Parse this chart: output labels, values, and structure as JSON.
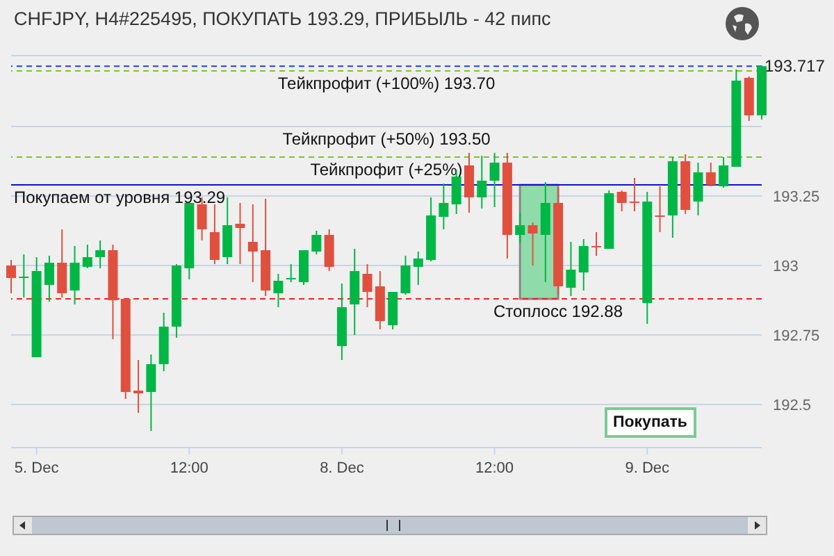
{
  "chart_data": {
    "type": "candlestick",
    "title": "CHFJPY, H4#225495, ПОКУПАТЬ 193.29, ПРИБЫЛЬ - 42 пипс",
    "categories": [
      null,
      null,
      "5. Dec",
      null,
      null,
      null,
      null,
      null,
      null,
      null,
      null,
      null,
      null,
      null,
      "12:00",
      null,
      null,
      null,
      null,
      null,
      null,
      null,
      null,
      null,
      null,
      null,
      "8. Dec",
      null,
      null,
      null,
      null,
      null,
      null,
      null,
      null,
      null,
      null,
      null,
      "12:00",
      null,
      null,
      null,
      null,
      null,
      null,
      null,
      null,
      null,
      null,
      null,
      "9. Dec",
      null,
      null,
      null,
      null,
      null,
      null,
      null,
      null,
      null
    ],
    "ohlc": [
      [
        193.0,
        193.02,
        192.9,
        192.955
      ],
      [
        192.96,
        193.04,
        192.885,
        192.96
      ],
      [
        192.67,
        193.03,
        192.67,
        192.98
      ],
      [
        192.93,
        193.035,
        192.87,
        193.01
      ],
      [
        193.01,
        193.13,
        192.885,
        192.9
      ],
      [
        192.91,
        193.07,
        192.86,
        193.01
      ],
      [
        192.995,
        193.075,
        192.99,
        193.03
      ],
      [
        193.03,
        193.09,
        192.99,
        193.055
      ],
      [
        193.055,
        193.075,
        192.735,
        192.875
      ],
      [
        192.88,
        192.88,
        192.52,
        192.545
      ],
      [
        192.55,
        192.66,
        192.47,
        192.54
      ],
      [
        192.545,
        192.68,
        192.405,
        192.645
      ],
      [
        192.645,
        192.83,
        192.62,
        192.78
      ],
      [
        192.78,
        193.005,
        192.74,
        193.0
      ],
      [
        192.99,
        193.225,
        192.95,
        193.225
      ],
      [
        193.22,
        193.245,
        193.09,
        193.13
      ],
      [
        193.12,
        193.22,
        193.005,
        193.02
      ],
      [
        193.03,
        193.245,
        193.005,
        193.145
      ],
      [
        193.15,
        193.225,
        193.005,
        193.135
      ],
      [
        193.085,
        193.22,
        192.94,
        193.05
      ],
      [
        193.055,
        193.24,
        192.89,
        192.91
      ],
      [
        192.9,
        192.97,
        192.85,
        192.945
      ],
      [
        192.95,
        193.005,
        192.94,
        192.955
      ],
      [
        192.94,
        193.055,
        192.93,
        193.055
      ],
      [
        193.05,
        193.125,
        193.04,
        193.11
      ],
      [
        193.11,
        193.13,
        192.98,
        192.995
      ],
      [
        192.71,
        192.935,
        192.66,
        192.85
      ],
      [
        192.86,
        193.06,
        192.75,
        192.98
      ],
      [
        192.97,
        193.005,
        192.85,
        192.905
      ],
      [
        192.925,
        192.98,
        192.77,
        192.8
      ],
      [
        192.785,
        192.905,
        192.77,
        192.905
      ],
      [
        192.9,
        193.035,
        192.895,
        193.0
      ],
      [
        192.995,
        193.05,
        192.93,
        193.025
      ],
      [
        193.02,
        193.245,
        193.015,
        193.18
      ],
      [
        193.175,
        193.295,
        193.13,
        193.225
      ],
      [
        193.22,
        193.345,
        193.185,
        193.32
      ],
      [
        193.36,
        193.405,
        193.19,
        193.245
      ],
      [
        193.245,
        193.395,
        193.205,
        193.305
      ],
      [
        193.305,
        193.405,
        193.21,
        193.37
      ],
      [
        193.37,
        193.405,
        193.025,
        193.11
      ],
      [
        193.11,
        193.19,
        193.08,
        193.145
      ],
      [
        193.145,
        193.155,
        193.0,
        193.115
      ],
      [
        193.11,
        193.3,
        192.94,
        193.225
      ],
      [
        193.225,
        193.28,
        192.895,
        192.925
      ],
      [
        192.92,
        193.085,
        192.89,
        192.985
      ],
      [
        192.975,
        193.095,
        192.91,
        193.07
      ],
      [
        193.07,
        193.12,
        193.035,
        193.065
      ],
      [
        193.06,
        193.27,
        193.06,
        193.26
      ],
      [
        193.265,
        193.27,
        193.195,
        193.225
      ],
      [
        193.23,
        193.315,
        193.195,
        193.225
      ],
      [
        192.865,
        193.265,
        192.79,
        193.23
      ],
      [
        193.18,
        193.285,
        193.12,
        193.175
      ],
      [
        193.18,
        193.39,
        193.1,
        193.375
      ],
      [
        193.375,
        193.4,
        193.185,
        193.2
      ],
      [
        193.23,
        193.37,
        193.18,
        193.335
      ],
      [
        193.335,
        193.37,
        193.285,
        193.29
      ],
      [
        193.285,
        193.39,
        193.28,
        193.36
      ],
      [
        193.355,
        193.705,
        193.355,
        193.665
      ],
      [
        193.675,
        193.68,
        193.52,
        193.54
      ],
      [
        193.54,
        193.72,
        193.525,
        193.717
      ]
    ],
    "colors": [
      "#e0503f",
      "#00b746",
      "#00b746",
      "#00b746",
      "#e0503f",
      "#00b746",
      "#00b746",
      "#00b746",
      "#e0503f",
      "#e0503f",
      "#e0503f",
      "#00b746",
      "#00b746",
      "#00b746",
      "#00b746",
      "#e0503f",
      "#e0503f",
      "#00b746",
      "#e0503f",
      "#e0503f",
      "#e0503f",
      "#00b746",
      "#00b746",
      "#00b746",
      "#00b746",
      "#e0503f",
      "#00b746",
      "#00b746",
      "#e0503f",
      "#e0503f",
      "#00b746",
      "#00b746",
      "#00b746",
      "#00b746",
      "#00b746",
      "#00b746",
      "#e0503f",
      "#00b746",
      "#00b746",
      "#e0503f",
      "#00b746",
      "#e0503f",
      "#00b746",
      "#e0503f",
      "#00b746",
      "#00b746",
      "#e0503f",
      "#00b746",
      "#e0503f",
      "#e0503f",
      "#00b746",
      "#e0503f",
      "#00b746",
      "#e0503f",
      "#00b746",
      "#e0503f",
      "#00b746",
      "#00b746",
      "#e0503f",
      "#00b746"
    ],
    "ylim": [
      192.345,
      193.755
    ],
    "yticks": [
      192.5,
      192.75,
      193,
      193.25,
      {
        "value": 193.5,
        "label": null
      }
    ],
    "grid": "y",
    "ref_lines": [
      {
        "axis": "y",
        "value": 193.717,
        "label": "193.717",
        "color": "#1f3fdf",
        "line_style": "dashed"
      },
      {
        "axis": "y",
        "value": 193.7,
        "label": "Тейкпрофит (+100%) 193.70",
        "color": "#7cc520",
        "line_style": "dashed"
      },
      {
        "axis": "y",
        "value": 193.5,
        "label": "Тейкпрофит (+50%) 193.50",
        "color": "#c8d4e6",
        "line_style": "solid"
      },
      {
        "axis": "y",
        "value": 193.39,
        "label": "Тейкпрофит (+25%)",
        "color": "#7cc520",
        "line_style": "dashed"
      },
      {
        "axis": "y",
        "value": 193.29,
        "label": "Покупаем от уровня 193.29",
        "color": "#1010d0",
        "line_style": "solid"
      },
      {
        "axis": "y",
        "value": 192.88,
        "label": "Стоплосс 192.88",
        "color": "#ff1a1a",
        "line_style": "dashed"
      }
    ],
    "annotations": [
      "Покупать"
    ]
  }
}
